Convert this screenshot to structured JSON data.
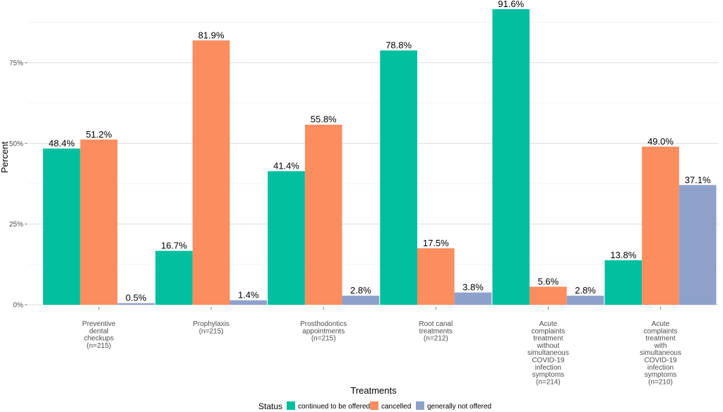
{
  "chart_data": {
    "type": "bar",
    "xlabel": "Treatments",
    "ylabel": "Percent",
    "ylim": [
      0,
      92
    ],
    "y_ticks": [
      {
        "value": 0,
        "label": "0%"
      },
      {
        "value": 25,
        "label": "25%"
      },
      {
        "value": 50,
        "label": "50%"
      },
      {
        "value": 75,
        "label": "75%"
      }
    ],
    "grid": "horizontal",
    "legend_position": "bottom",
    "legend_title": "Status",
    "categories": [
      "Preventive\ndental\ncheckups\n(n=215)",
      "Prophylaxis\n(n=215)",
      "Prosthodontics\nappointments\n(n=215)",
      "Root canal\ntreatments\n(n=212)",
      "Acute\ncomplaints\ntreatment\nwithout\nsimultaneous\nCOVID-19\ninfection\nsymptoms\n(n=214)",
      "Acute\ncomplaints\ntreatment\nwith\nsimultaneous\nCOVID-19\ninfection\nsymptoms\n(n=210)"
    ],
    "series": [
      {
        "name": "continued to be offered",
        "color": "#00BF9F",
        "values": [
          48.4,
          16.7,
          41.4,
          78.8,
          91.6,
          13.8
        ],
        "labels": [
          "48.4%",
          "16.7%",
          "41.4%",
          "78.8%",
          "91.6%",
          "13.8%"
        ]
      },
      {
        "name": "cancelled",
        "color": "#FC8D5E",
        "values": [
          51.2,
          81.9,
          55.8,
          17.5,
          5.6,
          49.0
        ],
        "labels": [
          "51.2%",
          "81.9%",
          "55.8%",
          "17.5%",
          "5.6%",
          "49.0%"
        ]
      },
      {
        "name": "generally not offered",
        "color": "#8DA1CB",
        "values": [
          0.5,
          1.4,
          2.8,
          3.8,
          2.8,
          37.1
        ],
        "labels": [
          "0.5%",
          "1.4%",
          "2.8%",
          "3.8%",
          "2.8%",
          "37.1%"
        ]
      }
    ]
  }
}
